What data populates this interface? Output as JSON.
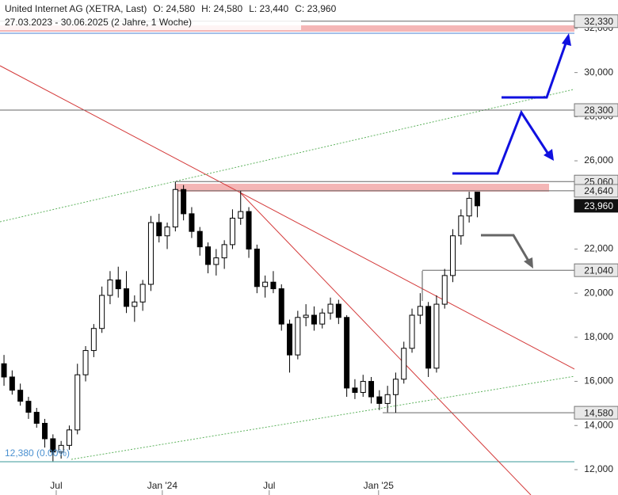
{
  "chart_data": {
    "type": "candlestick",
    "title": "United Internet AG (XETRA, Last)",
    "ohlc_labels": [
      "O: 24,580",
      "H: 24,580",
      "L: 23,440",
      "C: 23,960"
    ],
    "subtitle": "27.03.2023 - 30.06.2025  (2 Jahre, 1 Woche)",
    "open": [
      16.8,
      16.2,
      15.6,
      15.1,
      14.6,
      14.1,
      13.4,
      12.8,
      13.1,
      13.8,
      16.3,
      17.4,
      18.4,
      19.9,
      20.6,
      20.2,
      19.4,
      19.6,
      20.4,
      23.2,
      22.6,
      23.0,
      24.7,
      23.6,
      22.8,
      22.1,
      21.3,
      21.6,
      22.2,
      23.4,
      23.7,
      22.0,
      20.3,
      20.5,
      20.2,
      18.6,
      17.2,
      18.9,
      19.0,
      18.6,
      19.1,
      19.5,
      18.9,
      15.7,
      15.5,
      16.0,
      15.3,
      15.0,
      15.4,
      16.1,
      17.5,
      19.0,
      19.4,
      16.6,
      19.5,
      20.8,
      22.6,
      23.5,
      24.58
    ],
    "high": [
      17.2,
      16.5,
      15.9,
      15.3,
      14.8,
      14.3,
      13.6,
      13.3,
      14.0,
      16.8,
      17.6,
      18.6,
      20.3,
      21.0,
      21.2,
      21.0,
      19.9,
      20.6,
      23.5,
      23.6,
      23.2,
      25.06,
      24.9,
      23.9,
      23.0,
      22.3,
      22.0,
      22.4,
      23.8,
      24.64,
      23.9,
      22.2,
      20.8,
      21.0,
      20.4,
      18.8,
      19.2,
      19.5,
      19.4,
      19.3,
      19.8,
      19.7,
      19.0,
      16.1,
      16.3,
      16.2,
      15.6,
      15.8,
      16.4,
      17.8,
      19.3,
      20.0,
      19.6,
      19.9,
      21.1,
      22.9,
      23.8,
      24.6,
      24.58
    ],
    "low": [
      15.8,
      15.4,
      14.9,
      14.3,
      13.9,
      13.0,
      12.38,
      12.5,
      12.9,
      13.6,
      16.0,
      17.1,
      18.2,
      19.5,
      19.8,
      19.1,
      18.7,
      19.2,
      20.1,
      22.3,
      22.0,
      22.8,
      23.3,
      22.5,
      21.7,
      20.9,
      20.8,
      21.1,
      22.0,
      23.1,
      21.6,
      20.0,
      19.8,
      20.0,
      18.3,
      16.4,
      17.0,
      18.5,
      18.3,
      18.4,
      18.8,
      18.6,
      15.3,
      15.2,
      15.3,
      15.0,
      14.7,
      14.6,
      14.58,
      15.9,
      17.3,
      18.6,
      16.2,
      16.4,
      19.3,
      20.5,
      22.2,
      23.2,
      23.44
    ],
    "close": [
      16.2,
      15.6,
      15.1,
      14.6,
      14.1,
      13.4,
      12.8,
      13.1,
      13.8,
      16.3,
      17.4,
      18.4,
      19.9,
      20.6,
      20.2,
      19.4,
      19.6,
      20.4,
      23.2,
      22.6,
      23.0,
      24.7,
      23.6,
      22.8,
      22.1,
      21.3,
      21.6,
      22.2,
      23.4,
      23.7,
      22.0,
      20.3,
      20.5,
      20.2,
      18.6,
      17.2,
      18.9,
      19.0,
      18.6,
      19.1,
      19.5,
      18.9,
      15.7,
      15.5,
      16.0,
      15.3,
      15.0,
      15.4,
      16.1,
      17.5,
      19.0,
      19.4,
      16.6,
      19.5,
      20.8,
      22.6,
      23.5,
      24.3,
      23.96
    ],
    "up_color": "#ffffff",
    "down_color": "#000000",
    "xlim": [
      -0.49,
      69.9
    ],
    "xticks": [
      {
        "value": 6.4,
        "label": "Jul"
      },
      {
        "value": 19.4,
        "label": "Jan '24"
      },
      {
        "value": 32.5,
        "label": "Jul"
      },
      {
        "value": 45.9,
        "label": "Jan '25"
      }
    ],
    "ylim": [
      10.85,
      33.29
    ],
    "yticks": [
      {
        "value": 12,
        "label": "12,000"
      },
      {
        "value": 14,
        "label": "14,000"
      },
      {
        "value": 16,
        "label": "16,000"
      },
      {
        "value": 18,
        "label": "18,000"
      },
      {
        "value": 20,
        "label": "20,000"
      },
      {
        "value": 22,
        "label": "22,000"
      },
      {
        "value": 24,
        "label": "24,000"
      },
      {
        "value": 26,
        "label": "26,000"
      },
      {
        "value": 28,
        "label": "28,000"
      },
      {
        "value": 30,
        "label": "30,000"
      },
      {
        "value": 32,
        "label": "32,000"
      }
    ],
    "levels": [
      {
        "value": 32.33,
        "label": "32,330"
      },
      {
        "value": 28.3,
        "label": "28,300"
      },
      {
        "value": 25.06,
        "label": "25,060"
      },
      {
        "value": 24.64,
        "label": "24,640"
      },
      {
        "value": 23.96,
        "label": "23,960"
      },
      {
        "value": 21.04,
        "label": "21,040"
      },
      {
        "value": 14.58,
        "label": "14,580"
      }
    ],
    "low_label": "12,380 (0.00%)"
  }
}
